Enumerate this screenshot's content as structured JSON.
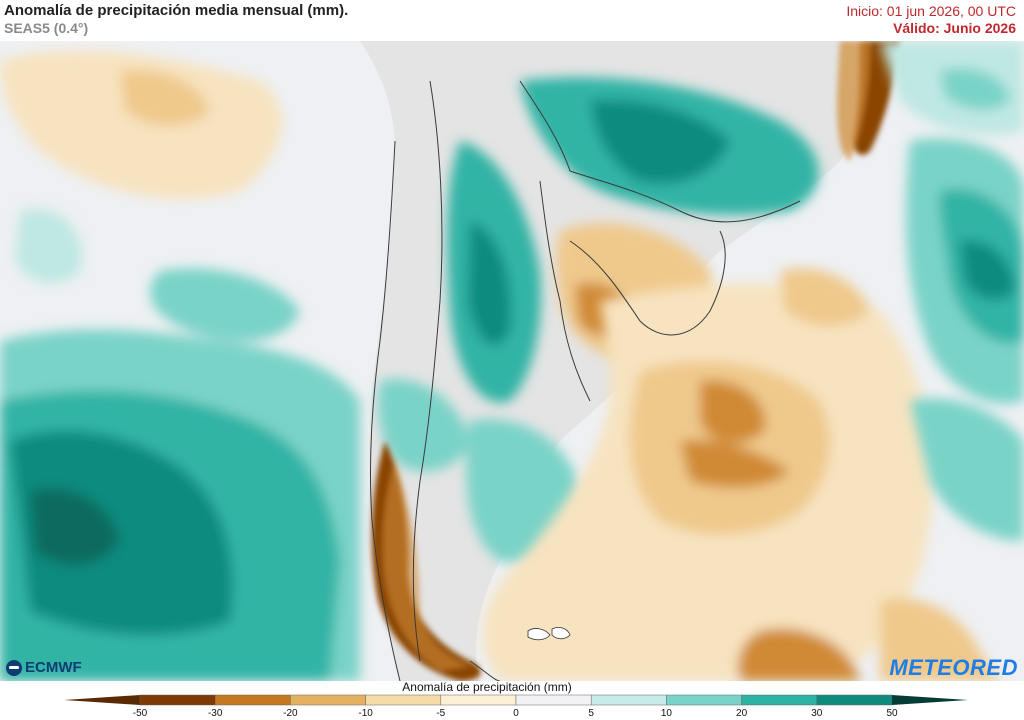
{
  "header": {
    "title": "Anomalía de precipitación media mensual (mm).",
    "subtitle": "SEAS5 (0.4°)",
    "init": "Inicio: 01 jun 2026, 00 UTC",
    "valid": "Válido: Junio 2026"
  },
  "logos": {
    "left": "ECMWF",
    "right": "METEORED"
  },
  "legend": {
    "title": "Anomalía de precipitación (mm)",
    "ticks": [
      "-50",
      "-30",
      "-20",
      "-10",
      "-5",
      "0",
      "5",
      "10",
      "20",
      "30",
      "50"
    ],
    "colors": [
      "#7b3a06",
      "#c47a1c",
      "#e4b25e",
      "#f5dca6",
      "#fbefd6",
      "#f2f2f5",
      "#c7ece8",
      "#7ad3c8",
      "#2cb3a3",
      "#0f8b7e",
      "#075e52"
    ],
    "arrow_colors": {
      "low": "#5a2a05",
      "high": "#053d36"
    }
  },
  "map": {
    "palette": {
      "ocean_neutral": "#e9eef2",
      "land": "#e6e6e6",
      "dry_strong": "#8a4406",
      "dry_mid": "#d08a35",
      "dry_light": "#efc98c",
      "dry_faint": "#f7e3bf",
      "wet_faint": "#bfe8e3",
      "wet_light": "#7ad3c8",
      "wet_mid": "#33b4a5",
      "wet_strong": "#0f8b7e",
      "wet_deep": "#0a6b5f"
    }
  }
}
